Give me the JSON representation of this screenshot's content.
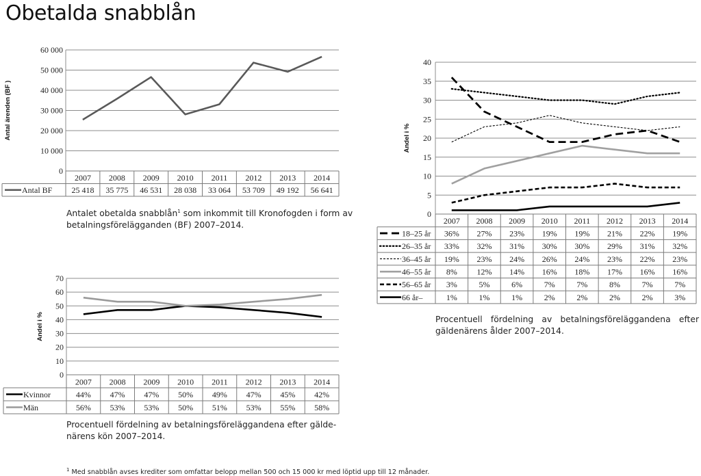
{
  "page": {
    "title": "Obetalda snabblån",
    "footnote_mark": "1",
    "footnote": "Med snabblån avses krediter som omfattar belopp mellan 500 och 15 000 kr med löptid upp till 12 månader."
  },
  "captions": {
    "c1_before": "Antalet obetalda snabblån",
    "c1_sup": "1",
    "c1_after": " som inkommit till Kronofogden i form av betalningsförelägganden (BF) 2007–2014.",
    "c2": "Procentuell fördelning av betalningsföreläggandena efter gälde-närens kön 2007–2014.",
    "c3": "Procentuell fördelning av betalningsföreläggandena efter gäldenärens ålder 2007–2014."
  },
  "chart_data": [
    {
      "id": "antal-bf",
      "type": "line",
      "title": "",
      "xlabel": "",
      "ylabel": "Antal ärenden (BF )",
      "ylim": [
        0,
        60000
      ],
      "yticks": [
        0,
        10000,
        20000,
        30000,
        40000,
        50000,
        60000
      ],
      "ytick_labels": [
        "0",
        "10 000",
        "20 000",
        "30 000",
        "40 000",
        "50 000",
        "60 000"
      ],
      "grid": true,
      "legend": "data-table",
      "categories": [
        "2007",
        "2008",
        "2009",
        "2010",
        "2011",
        "2012",
        "2013",
        "2014"
      ],
      "series": [
        {
          "name": "Antal BF",
          "values": [
            25418,
            35775,
            46531,
            28038,
            33064,
            53709,
            49192,
            56641
          ],
          "labels": [
            "25 418",
            "35 775",
            "46 531",
            "28 038",
            "33 064",
            "53 709",
            "49 192",
            "56 641"
          ],
          "color": "#595959",
          "dash": "solid"
        }
      ]
    },
    {
      "id": "kon",
      "type": "line",
      "title": "",
      "xlabel": "",
      "ylabel": "Andel i %",
      "ylim": [
        0,
        70
      ],
      "yticks": [
        0,
        10,
        20,
        30,
        40,
        50,
        60,
        70
      ],
      "ytick_labels": [
        "0",
        "10",
        "20",
        "30",
        "40",
        "50",
        "60",
        "70"
      ],
      "grid": true,
      "legend": "data-table",
      "categories": [
        "2007",
        "2008",
        "2009",
        "2010",
        "2011",
        "2012",
        "2013",
        "2014"
      ],
      "series": [
        {
          "name": "Kvinnor",
          "values": [
            44,
            47,
            47,
            50,
            49,
            47,
            45,
            42
          ],
          "labels": [
            "44%",
            "47%",
            "47%",
            "50%",
            "49%",
            "47%",
            "45%",
            "42%"
          ],
          "color": "#000000",
          "dash": "solid"
        },
        {
          "name": "Män",
          "values": [
            56,
            53,
            53,
            50,
            51,
            53,
            55,
            58
          ],
          "labels": [
            "56%",
            "53%",
            "53%",
            "50%",
            "51%",
            "53%",
            "55%",
            "58%"
          ],
          "color": "#9a9a9a",
          "dash": "solid"
        }
      ]
    },
    {
      "id": "alder",
      "type": "line",
      "title": "",
      "xlabel": "",
      "ylabel": "Andel i %",
      "ylim": [
        0,
        40
      ],
      "yticks": [
        0,
        5,
        10,
        15,
        20,
        25,
        30,
        35,
        40
      ],
      "ytick_labels": [
        "0",
        "5",
        "10",
        "15",
        "20",
        "25",
        "30",
        "35",
        "40"
      ],
      "grid": true,
      "legend": "data-table",
      "categories": [
        "2007",
        "2008",
        "2009",
        "2010",
        "2011",
        "2012",
        "2013",
        "2014"
      ],
      "series": [
        {
          "name": "18–25 år",
          "values": [
            36,
            27,
            23,
            19,
            19,
            21,
            22,
            19
          ],
          "labels": [
            "36%",
            "27%",
            "23%",
            "19%",
            "19%",
            "21%",
            "22%",
            "19%"
          ],
          "color": "#000000",
          "dash": "long-dash"
        },
        {
          "name": "26–35 år",
          "values": [
            33,
            32,
            31,
            30,
            30,
            29,
            31,
            32
          ],
          "labels": [
            "33%",
            "32%",
            "31%",
            "30%",
            "30%",
            "29%",
            "31%",
            "32%"
          ],
          "color": "#000000",
          "dash": "dotted"
        },
        {
          "name": "36–45 år",
          "values": [
            19,
            23,
            24,
            26,
            24,
            23,
            22,
            23
          ],
          "labels": [
            "19%",
            "23%",
            "24%",
            "26%",
            "24%",
            "23%",
            "22%",
            "23%"
          ],
          "color": "#000000",
          "dash": "fine-dash"
        },
        {
          "name": "46–55 år",
          "values": [
            8,
            12,
            14,
            16,
            18,
            17,
            16,
            16
          ],
          "labels": [
            "8%",
            "12%",
            "14%",
            "16%",
            "18%",
            "17%",
            "16%",
            "16%"
          ],
          "color": "#a0a0a0",
          "dash": "solid"
        },
        {
          "name": "56–65 år",
          "values": [
            3,
            5,
            6,
            7,
            7,
            8,
            7,
            7
          ],
          "labels": [
            "3%",
            "5%",
            "6%",
            "7%",
            "7%",
            "8%",
            "7%",
            "7%"
          ],
          "color": "#000000",
          "dash": "dash"
        },
        {
          "name": "66 år–",
          "values": [
            1,
            1,
            1,
            2,
            2,
            2,
            2,
            3
          ],
          "labels": [
            "1%",
            "1%",
            "1%",
            "2%",
            "2%",
            "2%",
            "2%",
            "3%"
          ],
          "color": "#000000",
          "dash": "solid"
        }
      ]
    }
  ]
}
